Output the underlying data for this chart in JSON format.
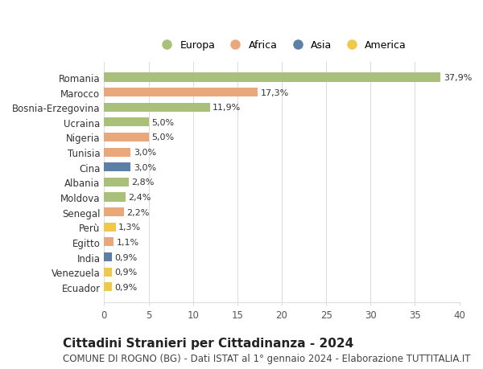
{
  "countries": [
    "Romania",
    "Marocco",
    "Bosnia-Erzegovina",
    "Ucraina",
    "Nigeria",
    "Tunisia",
    "Cina",
    "Albania",
    "Moldova",
    "Senegal",
    "Perù",
    "Egitto",
    "India",
    "Venezuela",
    "Ecuador"
  ],
  "values": [
    37.9,
    17.3,
    11.9,
    5.0,
    5.0,
    3.0,
    3.0,
    2.8,
    2.4,
    2.2,
    1.3,
    1.1,
    0.9,
    0.9,
    0.9
  ],
  "labels": [
    "37,9%",
    "17,3%",
    "11,9%",
    "5,0%",
    "5,0%",
    "3,0%",
    "3,0%",
    "2,8%",
    "2,4%",
    "2,2%",
    "1,3%",
    "1,1%",
    "0,9%",
    "0,9%",
    "0,9%"
  ],
  "continents": [
    "Europa",
    "Africa",
    "Europa",
    "Europa",
    "Africa",
    "Africa",
    "Asia",
    "Europa",
    "Europa",
    "Africa",
    "America",
    "Africa",
    "Asia",
    "America",
    "America"
  ],
  "continent_colors": {
    "Europa": "#a8c07a",
    "Africa": "#e8a87c",
    "Asia": "#5b7fa6",
    "America": "#f0c84a"
  },
  "legend_order": [
    "Europa",
    "Africa",
    "Asia",
    "America"
  ],
  "title": "Cittadini Stranieri per Cittadinanza - 2024",
  "subtitle": "COMUNE DI ROGNO (BG) - Dati ISTAT al 1° gennaio 2024 - Elaborazione TUTTITALIA.IT",
  "xlim": [
    0,
    40
  ],
  "xticks": [
    0,
    5,
    10,
    15,
    20,
    25,
    30,
    35,
    40
  ],
  "background_color": "#ffffff",
  "grid_color": "#dddddd",
  "bar_height": 0.6,
  "title_fontsize": 11,
  "subtitle_fontsize": 8.5,
  "label_fontsize": 8,
  "tick_fontsize": 8.5,
  "legend_fontsize": 9
}
